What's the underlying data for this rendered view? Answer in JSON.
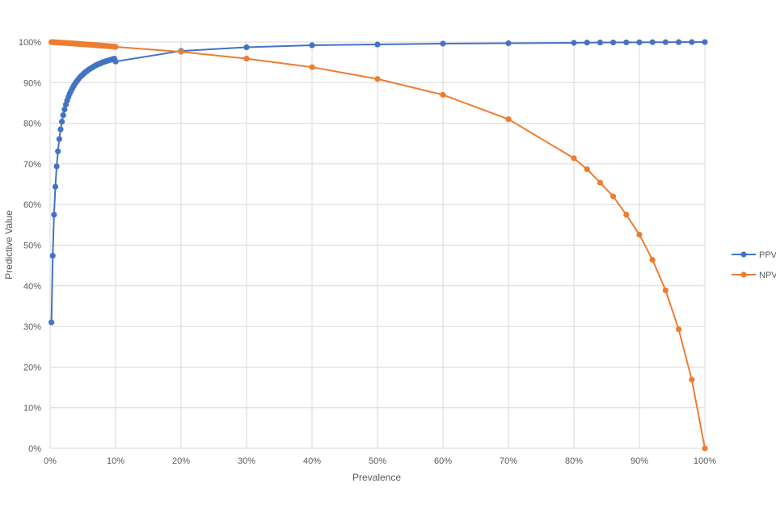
{
  "chart_data": {
    "type": "line",
    "xlabel": "Prevalence",
    "ylabel": "Predictive Value",
    "xlim": [
      0,
      100
    ],
    "ylim": [
      0,
      100
    ],
    "x_unit": "%",
    "y_unit": "%",
    "grid": "both",
    "legend_position": "right",
    "x_ticks": [
      "0%",
      "10%",
      "20%",
      "30%",
      "40%",
      "50%",
      "60%",
      "70%",
      "80%",
      "90%",
      "100%"
    ],
    "y_ticks": [
      "0%",
      "10%",
      "20%",
      "30%",
      "40%",
      "50%",
      "60%",
      "70%",
      "80%",
      "90%",
      "100%"
    ],
    "series": [
      {
        "name": "PPV",
        "color": "#4472C4",
        "x": [
          0.2,
          0.4,
          0.6,
          0.8,
          1.0,
          1.2,
          1.4,
          1.6,
          1.8,
          2.0,
          2.2,
          2.4,
          2.6,
          2.8,
          3.0,
          3.2,
          3.4,
          3.6,
          3.8,
          4.0,
          4.2,
          4.4,
          4.6,
          4.8,
          5.0,
          5.2,
          5.4,
          5.6,
          5.8,
          6.0,
          6.2,
          6.4,
          6.6,
          6.8,
          7.0,
          7.2,
          7.4,
          7.6,
          7.8,
          8.0,
          8.2,
          8.4,
          8.6,
          8.8,
          9.0,
          9.2,
          9.4,
          9.6,
          9.8,
          10,
          20,
          30,
          40,
          50,
          60,
          70,
          80,
          82,
          84,
          86,
          88,
          90,
          92,
          94,
          96,
          98,
          100
        ],
        "y": [
          31.0,
          47.4,
          57.5,
          64.4,
          69.4,
          73.1,
          76.1,
          78.5,
          80.4,
          82.0,
          83.4,
          84.6,
          85.6,
          86.5,
          87.3,
          88.0,
          88.6,
          89.2,
          89.7,
          90.2,
          90.6,
          91.0,
          91.4,
          91.7,
          92.0,
          92.3,
          92.6,
          92.8,
          93.1,
          93.3,
          93.5,
          93.7,
          93.9,
          94.1,
          94.3,
          94.4,
          94.6,
          94.7,
          94.8,
          95.0,
          95.1,
          95.2,
          95.3,
          95.4,
          95.5,
          95.6,
          95.7,
          95.8,
          95.9,
          95.2,
          97.8,
          98.7,
          99.2,
          99.4,
          99.6,
          99.7,
          99.8,
          99.85,
          99.87,
          99.89,
          99.91,
          99.93,
          99.95,
          99.96,
          99.97,
          99.98,
          99.99
        ]
      },
      {
        "name": "NPV",
        "color": "#ED7D31",
        "x": [
          0.2,
          0.4,
          0.6,
          0.8,
          1.0,
          1.2,
          1.4,
          1.6,
          1.8,
          2.0,
          2.2,
          2.4,
          2.6,
          2.8,
          3.0,
          3.2,
          3.4,
          3.6,
          3.8,
          4.0,
          4.2,
          4.4,
          4.6,
          4.8,
          5.0,
          5.2,
          5.4,
          5.6,
          5.8,
          6.0,
          6.2,
          6.4,
          6.6,
          6.8,
          7.0,
          7.2,
          7.4,
          7.6,
          7.8,
          8.0,
          8.2,
          8.4,
          8.6,
          8.8,
          9.0,
          9.2,
          9.4,
          9.6,
          9.8,
          10,
          20,
          30,
          40,
          50,
          60,
          70,
          80,
          82,
          84,
          86,
          88,
          90,
          92,
          94,
          96,
          98,
          100
        ],
        "y": [
          99.98,
          99.97,
          99.95,
          99.93,
          99.9,
          99.88,
          99.86,
          99.84,
          99.82,
          99.8,
          99.78,
          99.76,
          99.74,
          99.72,
          99.69,
          99.67,
          99.65,
          99.63,
          99.6,
          99.58,
          99.56,
          99.53,
          99.51,
          99.49,
          99.47,
          99.44,
          99.42,
          99.39,
          99.37,
          99.35,
          99.32,
          99.3,
          99.27,
          99.25,
          99.22,
          99.2,
          99.17,
          99.15,
          99.12,
          99.1,
          99.07,
          99.05,
          99.02,
          99.0,
          98.97,
          98.94,
          98.92,
          98.89,
          98.87,
          98.8,
          97.6,
          95.9,
          93.8,
          90.9,
          87.0,
          81.0,
          71.4,
          68.7,
          65.4,
          62.0,
          57.5,
          52.6,
          46.4,
          38.9,
          29.3,
          16.9,
          0.0
        ]
      }
    ]
  }
}
